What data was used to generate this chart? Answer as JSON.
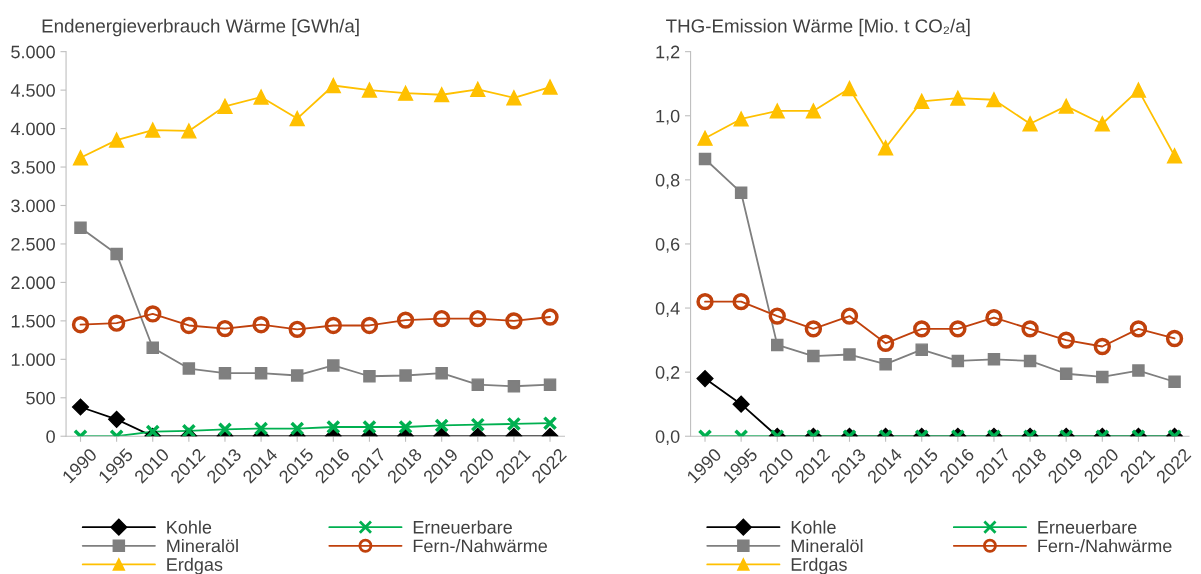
{
  "chart_data": [
    {
      "type": "line",
      "title": "Endenergieverbrauch Wärme [GWh/a]",
      "categories": [
        "1990",
        "1995",
        "2010",
        "2012",
        "2013",
        "2014",
        "2015",
        "2016",
        "2017",
        "2018",
        "2019",
        "2020",
        "2021",
        "2022"
      ],
      "series": [
        {
          "name": "Kohle",
          "color": "#000000",
          "marker": "diamond",
          "values": [
            380,
            220,
            0,
            0,
            0,
            0,
            0,
            0,
            0,
            0,
            0,
            0,
            0,
            0
          ]
        },
        {
          "name": "Mineralöl",
          "color": "#7f7f7f",
          "marker": "square",
          "values": [
            2710,
            2370,
            1150,
            880,
            820,
            820,
            790,
            920,
            780,
            790,
            820,
            670,
            650,
            670
          ]
        },
        {
          "name": "Erdgas",
          "color": "#ffc000",
          "marker": "triangle",
          "values": [
            3620,
            3850,
            3980,
            3970,
            4290,
            4410,
            4130,
            4560,
            4500,
            4460,
            4440,
            4510,
            4400,
            4540
          ]
        },
        {
          "name": "Erneuerbare",
          "color": "#00b050",
          "marker": "cross",
          "values": [
            0,
            0,
            60,
            70,
            90,
            100,
            100,
            120,
            120,
            120,
            140,
            150,
            160,
            170
          ]
        },
        {
          "name": "Fern-/Nahwärme",
          "color": "#c0410c",
          "marker": "circle",
          "values": [
            1450,
            1470,
            1590,
            1440,
            1400,
            1450,
            1390,
            1440,
            1440,
            1510,
            1530,
            1530,
            1500,
            1550
          ]
        }
      ],
      "ylim": [
        0,
        5000
      ],
      "yticks": [
        0,
        500,
        {
          "value": 1000,
          "label": "1.000"
        },
        {
          "value": 1500,
          "label": "1.500"
        },
        {
          "value": 2000,
          "label": "2.000"
        },
        {
          "value": 2500,
          "label": "2.500"
        },
        {
          "value": 3000,
          "label": "3.000"
        },
        {
          "value": 3500,
          "label": "3.500"
        },
        {
          "value": 4000,
          "label": "4.000"
        },
        {
          "value": 4500,
          "label": "4.500"
        },
        {
          "value": 5000,
          "label": "5.000"
        }
      ],
      "grid": false,
      "legend": "bottom"
    },
    {
      "type": "line",
      "title": "THG-Emission Wärme [Mio. t CO₂/a]",
      "categories": [
        "1990",
        "1995",
        "2010",
        "2012",
        "2013",
        "2014",
        "2015",
        "2016",
        "2017",
        "2018",
        "2019",
        "2020",
        "2021",
        "2022"
      ],
      "series": [
        {
          "name": "Kohle",
          "color": "#000000",
          "marker": "diamond",
          "values": [
            0.18,
            0.1,
            0,
            0,
            0,
            0,
            0,
            0,
            0,
            0,
            0,
            0,
            0,
            0
          ]
        },
        {
          "name": "Mineralöl",
          "color": "#7f7f7f",
          "marker": "square",
          "values": [
            0.865,
            0.76,
            0.285,
            0.25,
            0.255,
            0.225,
            0.27,
            0.235,
            0.24,
            0.235,
            0.195,
            0.185,
            0.205,
            0.17
          ]
        },
        {
          "name": "Erdgas",
          "color": "#ffc000",
          "marker": "triangle",
          "values": [
            0.93,
            0.99,
            1.015,
            1.015,
            1.085,
            0.9,
            1.045,
            1.055,
            1.05,
            0.975,
            1.03,
            0.975,
            1.08,
            0.875
          ]
        },
        {
          "name": "Erneuerbare",
          "color": "#00b050",
          "marker": "cross",
          "values": [
            0,
            0,
            0,
            0,
            0,
            0,
            0,
            0,
            0,
            0,
            0,
            0,
            0,
            0
          ]
        },
        {
          "name": "Fern-/Nahwärme",
          "color": "#c0410c",
          "marker": "circle",
          "values": [
            0.42,
            0.42,
            0.375,
            0.335,
            0.375,
            0.29,
            0.335,
            0.335,
            0.37,
            0.335,
            0.3,
            0.28,
            0.335,
            0.305
          ]
        }
      ],
      "ylim": [
        0,
        1.2
      ],
      "yticks": [
        {
          "value": 0,
          "label": "0,0"
        },
        {
          "value": 0.2,
          "label": "0,2"
        },
        {
          "value": 0.4,
          "label": "0,4"
        },
        {
          "value": 0.6,
          "label": "0,6"
        },
        {
          "value": 0.8,
          "label": "0,8"
        },
        {
          "value": 1.0,
          "label": "1,0"
        },
        {
          "value": 1.2,
          "label": "1,2"
        }
      ],
      "grid": false,
      "legend": "bottom"
    }
  ]
}
